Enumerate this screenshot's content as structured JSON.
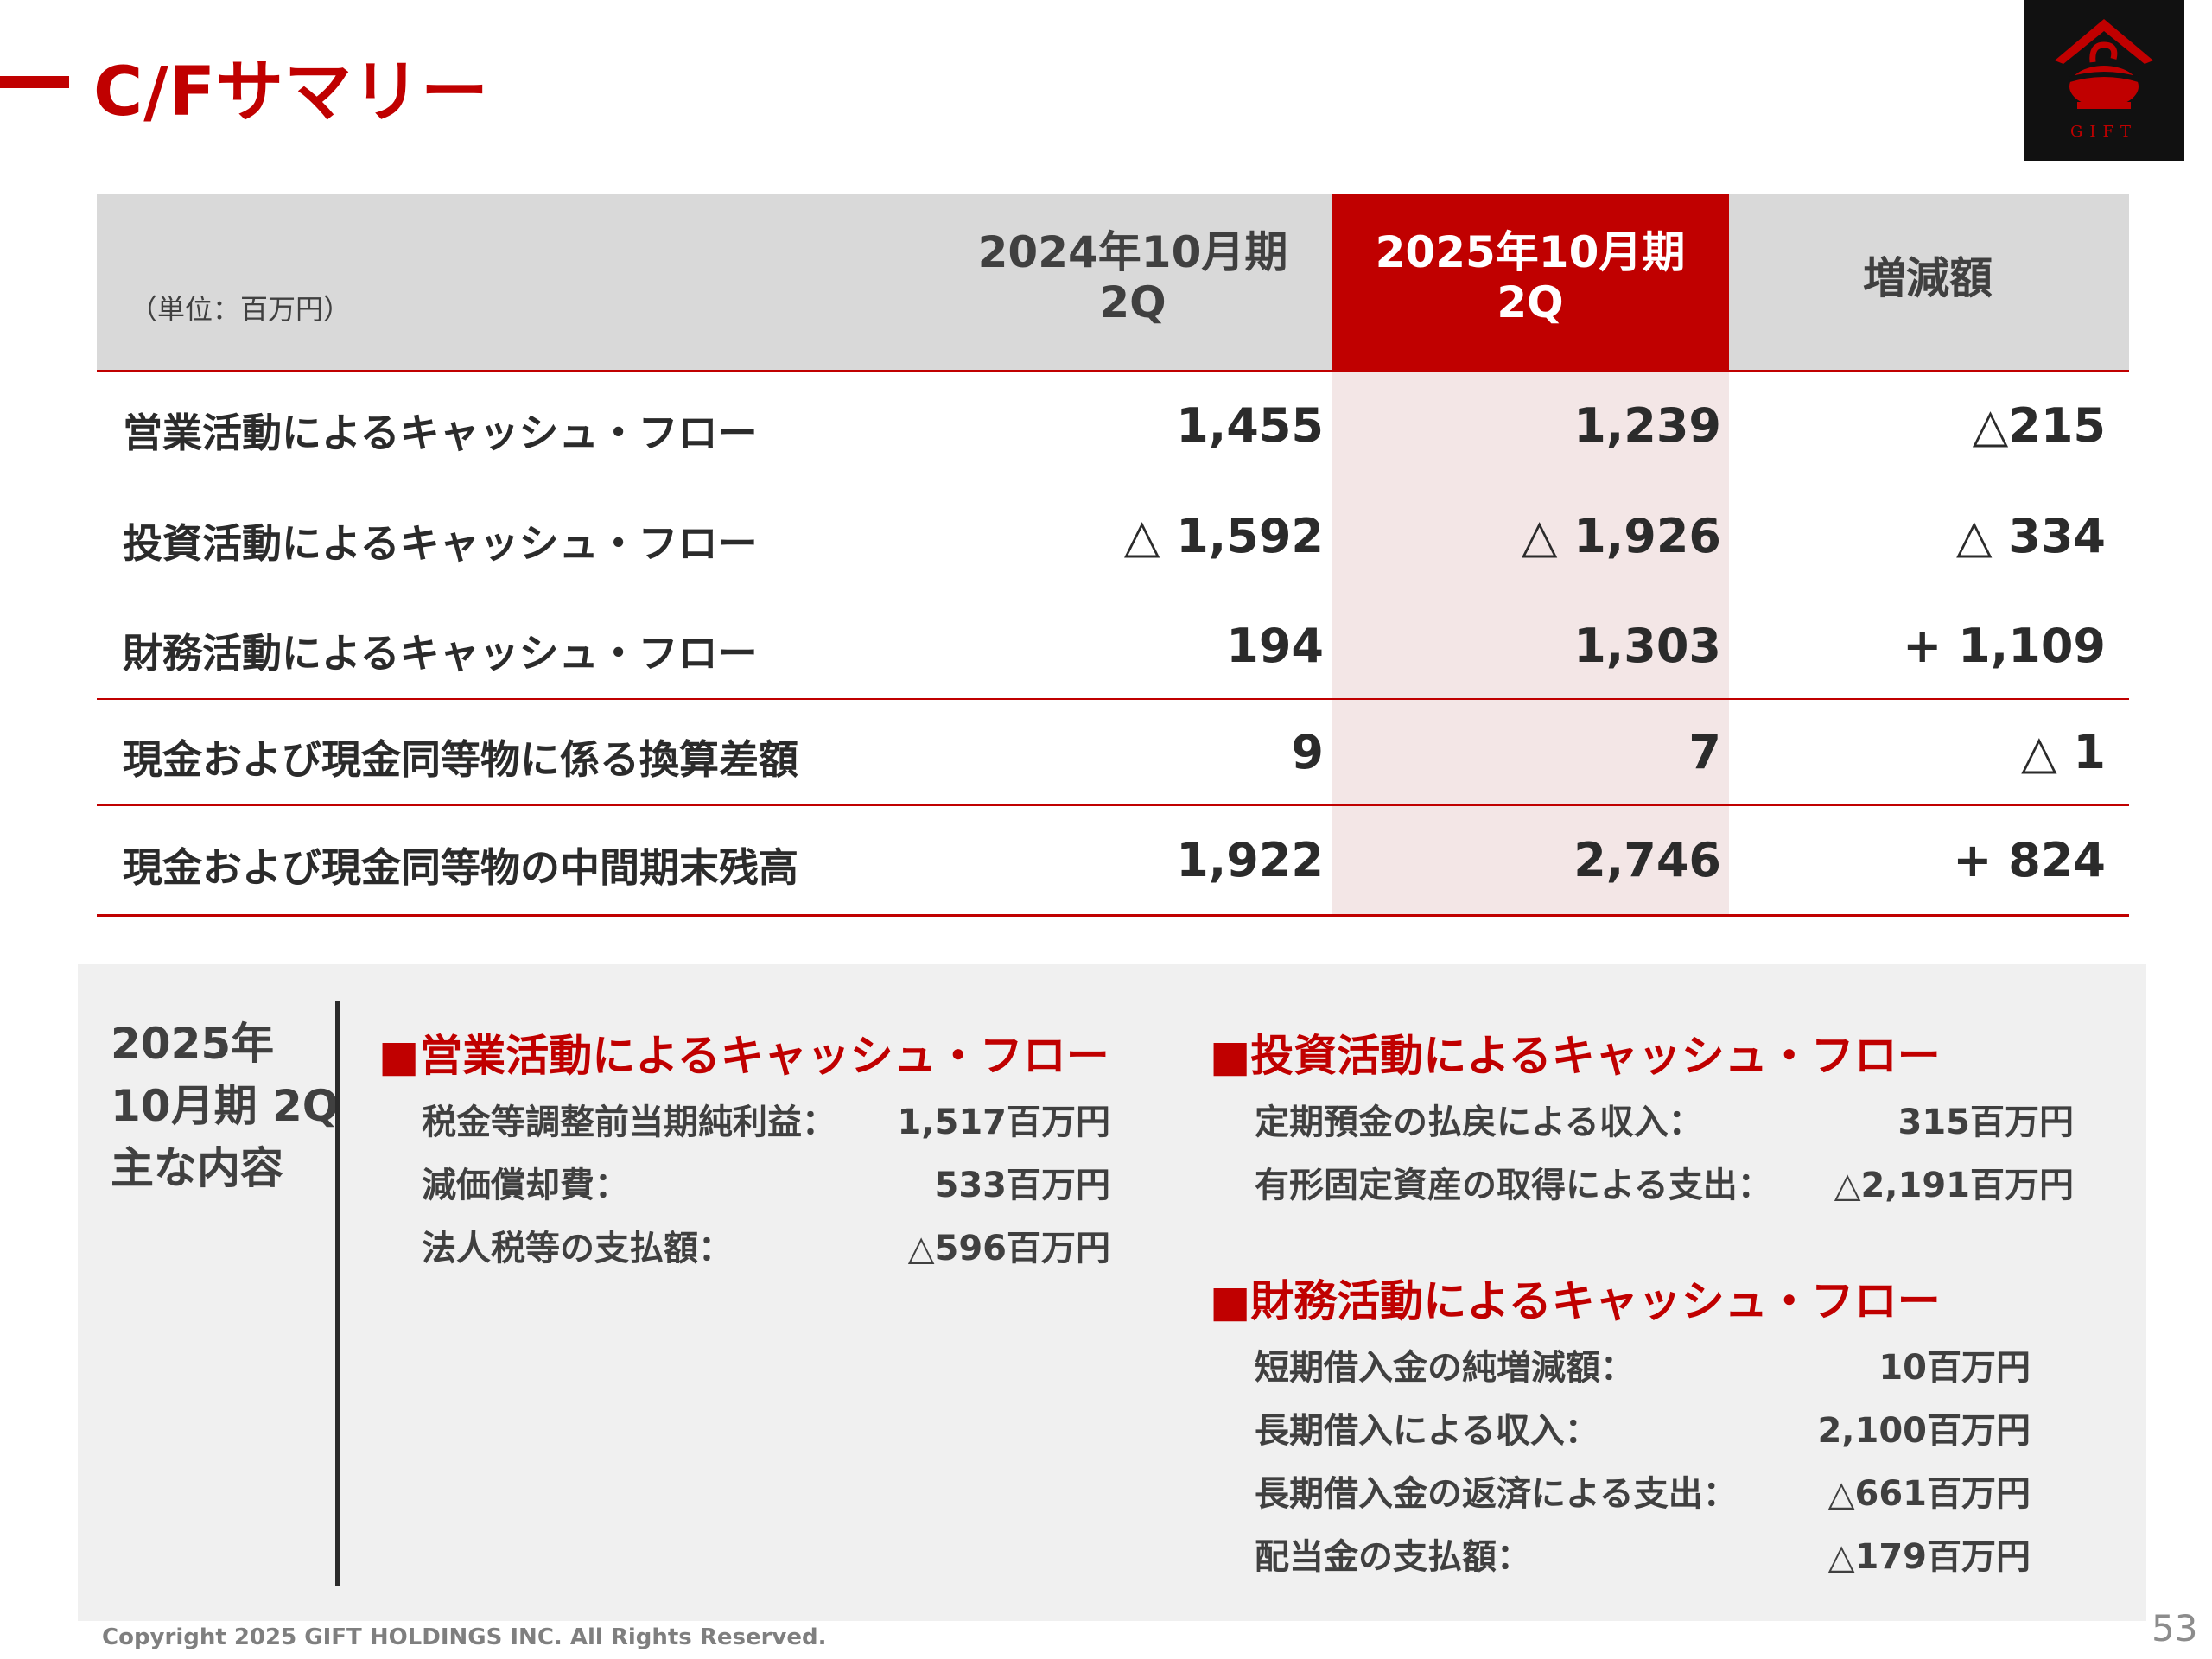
{
  "page": {
    "title": "C/Fサマリー",
    "number": "53",
    "copyright": "Copyright 2025 GIFT HOLDINGS INC. All Rights Reserved."
  },
  "logo": {
    "text": "GIFT",
    "icon": "gift-house-icon"
  },
  "table": {
    "unit": "（単位：百万円）",
    "columns": [
      "2024年10月期\n2Q",
      "2025年10月期\n2Q",
      "増減額"
    ],
    "rows": [
      {
        "label": "営業活動によるキャッシュ・フロー",
        "prev": "1,455",
        "curr": "1,239",
        "diff": "△215"
      },
      {
        "label": "投資活動によるキャッシュ・フロー",
        "prev": "△ 1,592",
        "curr": "△ 1,926",
        "diff": "△ 334"
      },
      {
        "label": "財務活動によるキャッシュ・フロー",
        "prev": "194",
        "curr": "1,303",
        "diff": "+ 1,109"
      },
      {
        "label": "現金および現金同等物に係る換算差額",
        "prev": "9",
        "curr": "7",
        "diff": "△ 1"
      },
      {
        "label": "現金および現金同等物の中間期末残高",
        "prev": "1,922",
        "curr": "2,746",
        "diff": "+ 824"
      }
    ]
  },
  "summary": {
    "heading": [
      "2025年",
      "10月期 2Q",
      "主な内容"
    ],
    "operating": {
      "title": "■営業活動によるキャッシュ・フロー",
      "items": [
        {
          "label": "税金等調整前当期純利益：",
          "value": "1,517百万円"
        },
        {
          "label": "減価償却費：",
          "value": "533百万円"
        },
        {
          "label": "法人税等の支払額：",
          "value": "△596百万円"
        }
      ]
    },
    "investing": {
      "title": "■投資活動によるキャッシュ・フロー",
      "items": [
        {
          "label": "定期預金の払戻による収入：",
          "value": "315百万円"
        },
        {
          "label": "有形固定資産の取得による支出：",
          "value": "△2,191百万円"
        }
      ]
    },
    "financing": {
      "title": "■財務活動によるキャッシュ・フロー",
      "items": [
        {
          "label": "短期借入金の純増減額：",
          "value": "10百万円"
        },
        {
          "label": "長期借入による収入：",
          "value": "2,100百万円"
        },
        {
          "label": "長期借入金の返済による支出：",
          "value": "△661百万円"
        },
        {
          "label": "配当金の支払額：",
          "value": "△179百万円"
        }
      ]
    }
  },
  "colors": {
    "accent": "#c00000",
    "header_bg": "#d9d9d9",
    "highlight_bg": "#f3e6e6",
    "box_bg": "#f0f0f0"
  }
}
